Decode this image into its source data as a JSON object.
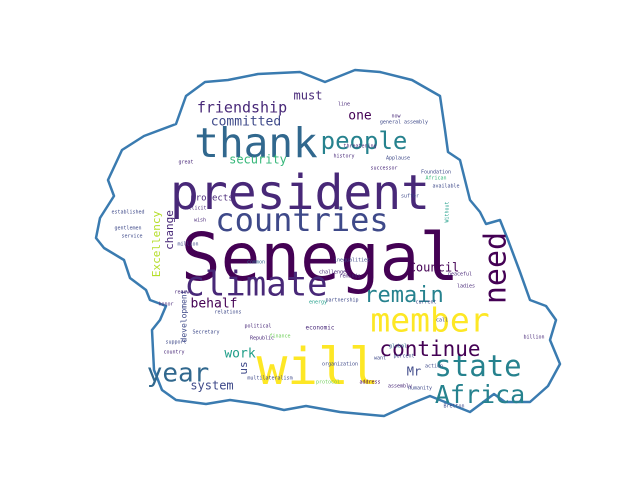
{
  "colors": {
    "background": "#ffffff",
    "outline": "#3a7bb0",
    "palette": [
      "#440154",
      "#482878",
      "#3e4989",
      "#31688e",
      "#26828e",
      "#1f9e89",
      "#35b779",
      "#6ece58",
      "#b5de2b",
      "#fde725"
    ]
  },
  "words": [
    {
      "text": "Senegal",
      "weight": 1.0,
      "color": "#440154"
    },
    {
      "text": "will",
      "weight": 0.78,
      "color": "#fde725"
    },
    {
      "text": "president",
      "weight": 0.72,
      "color": "#482878"
    },
    {
      "text": "thank",
      "weight": 0.62,
      "color": "#31688e"
    },
    {
      "text": "climate",
      "weight": 0.52,
      "color": "#482878"
    },
    {
      "text": "countries",
      "weight": 0.48,
      "color": "#3e4989"
    },
    {
      "text": "member",
      "weight": 0.5,
      "color": "#fde725"
    },
    {
      "text": "need",
      "weight": 0.45,
      "color": "#440154"
    },
    {
      "text": "state",
      "weight": 0.44,
      "color": "#26828e"
    },
    {
      "text": "year",
      "weight": 0.4,
      "color": "#31688e"
    },
    {
      "text": "Africa",
      "weight": 0.38,
      "color": "#26828e"
    },
    {
      "text": "people",
      "weight": 0.36,
      "color": "#26828e"
    },
    {
      "text": "remain",
      "weight": 0.34,
      "color": "#26828e"
    },
    {
      "text": "continue",
      "weight": 0.32,
      "color": "#440154"
    },
    {
      "text": "friendship",
      "weight": 0.22,
      "color": "#482878"
    },
    {
      "text": "committed",
      "weight": 0.2,
      "color": "#3e4989"
    },
    {
      "text": "must",
      "weight": 0.18,
      "color": "#482878"
    },
    {
      "text": "one",
      "weight": 0.2,
      "color": "#440154"
    },
    {
      "text": "security",
      "weight": 0.18,
      "color": "#35b779"
    },
    {
      "text": "work",
      "weight": 0.2,
      "color": "#1f9e89"
    },
    {
      "text": "behalf",
      "weight": 0.2,
      "color": "#440154"
    },
    {
      "text": "Council",
      "weight": 0.18,
      "color": "#440154"
    },
    {
      "text": "system",
      "weight": 0.18,
      "color": "#3e4989"
    },
    {
      "text": "us",
      "weight": 0.16,
      "color": "#3e4989"
    },
    {
      "text": "Mr",
      "weight": 0.18,
      "color": "#3e4989"
    },
    {
      "text": "change",
      "weight": 0.16,
      "color": "#482878"
    },
    {
      "text": "projects",
      "weight": 0.14,
      "color": "#482878"
    },
    {
      "text": "Excellency",
      "weight": 0.16,
      "color": "#b5de2b"
    },
    {
      "text": "development",
      "weight": 0.12,
      "color": "#3e4989"
    },
    {
      "text": "economic",
      "weight": 0.09,
      "color": "#482878"
    },
    {
      "text": "common",
      "weight": 0.08,
      "color": "#31688e"
    },
    {
      "text": "inequalities",
      "weight": 0.08,
      "color": "#3e4989"
    },
    {
      "text": "partnership",
      "weight": 0.08,
      "color": "#3e4989"
    },
    {
      "text": "general assembly",
      "weight": 0.08,
      "color": "#3e4989"
    },
    {
      "text": "Foundation",
      "weight": 0.08,
      "color": "#3e4989"
    },
    {
      "text": "threatening",
      "weight": 0.08,
      "color": "#482878"
    },
    {
      "text": "history",
      "weight": 0.07,
      "color": "#482878"
    },
    {
      "text": "Applause",
      "weight": 0.07,
      "color": "#3e4989"
    },
    {
      "text": "successor",
      "weight": 0.07,
      "color": "#482878"
    },
    {
      "text": "Secretary",
      "weight": 0.08,
      "color": "#3e4989"
    },
    {
      "text": "Republic",
      "weight": 0.08,
      "color": "#482878"
    },
    {
      "text": "support",
      "weight": 0.08,
      "color": "#3e4989"
    },
    {
      "text": "country",
      "weight": 0.08,
      "color": "#482878"
    },
    {
      "text": "global",
      "weight": 0.08,
      "color": "#31688e"
    },
    {
      "text": "percent",
      "weight": 0.08,
      "color": "#3e4989"
    },
    {
      "text": "assembly",
      "weight": 0.08,
      "color": "#482878"
    },
    {
      "text": "address",
      "weight": 0.08,
      "color": "#440154"
    },
    {
      "text": "protocol",
      "weight": 0.08,
      "color": "#6ece58"
    },
    {
      "text": "humanity",
      "weight": 0.07,
      "color": "#3e4989"
    },
    {
      "text": "Bretton",
      "weight": 0.07,
      "color": "#3e4989"
    },
    {
      "text": "peaceful",
      "weight": 0.07,
      "color": "#482878"
    },
    {
      "text": "ladies",
      "weight": 0.07,
      "color": "#482878"
    },
    {
      "text": "current",
      "weight": 0.07,
      "color": "#3e4989"
    },
    {
      "text": "challenges",
      "weight": 0.07,
      "color": "#482878"
    },
    {
      "text": "million",
      "weight": 0.07,
      "color": "#3e4989"
    },
    {
      "text": "wish",
      "weight": 0.08,
      "color": "#482878"
    },
    {
      "text": "illicit",
      "weight": 0.07,
      "color": "#482878"
    },
    {
      "text": "gentlemen",
      "weight": 0.07,
      "color": "#3e4989"
    },
    {
      "text": "service",
      "weight": 0.07,
      "color": "#3e4989"
    },
    {
      "text": "relations",
      "weight": 0.07,
      "color": "#3e4989"
    },
    {
      "text": "political",
      "weight": 0.07,
      "color": "#482878"
    },
    {
      "text": "multilateralism",
      "weight": 0.07,
      "color": "#3e4989"
    },
    {
      "text": "organization",
      "weight": 0.07,
      "color": "#3e4989"
    },
    {
      "text": "energy",
      "weight": 0.07,
      "color": "#1f9e89"
    },
    {
      "text": "Without",
      "weight": 0.07,
      "color": "#1f9e89"
    },
    {
      "text": "available",
      "weight": 0.07,
      "color": "#3e4989"
    },
    {
      "text": "established",
      "weight": 0.07,
      "color": "#3e4989"
    },
    {
      "text": "renew",
      "weight": 0.07,
      "color": "#482878"
    },
    {
      "text": "honor",
      "weight": 0.07,
      "color": "#482878"
    },
    {
      "text": "action",
      "weight": 0.07,
      "color": "#3e4989"
    },
    {
      "text": "African",
      "weight": 0.07,
      "color": "#35b779"
    },
    {
      "text": "great",
      "weight": 0.07,
      "color": "#482878"
    },
    {
      "text": "call",
      "weight": 0.07,
      "color": "#3e4989"
    },
    {
      "text": "now",
      "weight": 0.07,
      "color": "#482878"
    },
    {
      "text": "line",
      "weight": 0.06,
      "color": "#482878"
    },
    {
      "text": "finance",
      "weight": 0.06,
      "color": "#6ece58"
    },
    {
      "text": "billion",
      "weight": 0.06,
      "color": "#482878"
    },
    {
      "text": "suffer",
      "weight": 0.06,
      "color": "#3e4989"
    },
    {
      "text": "want",
      "weight": 0.06,
      "color": "#3e4989"
    },
    {
      "text": "reminds",
      "weight": 0.06,
      "color": "#482878"
    }
  ]
}
